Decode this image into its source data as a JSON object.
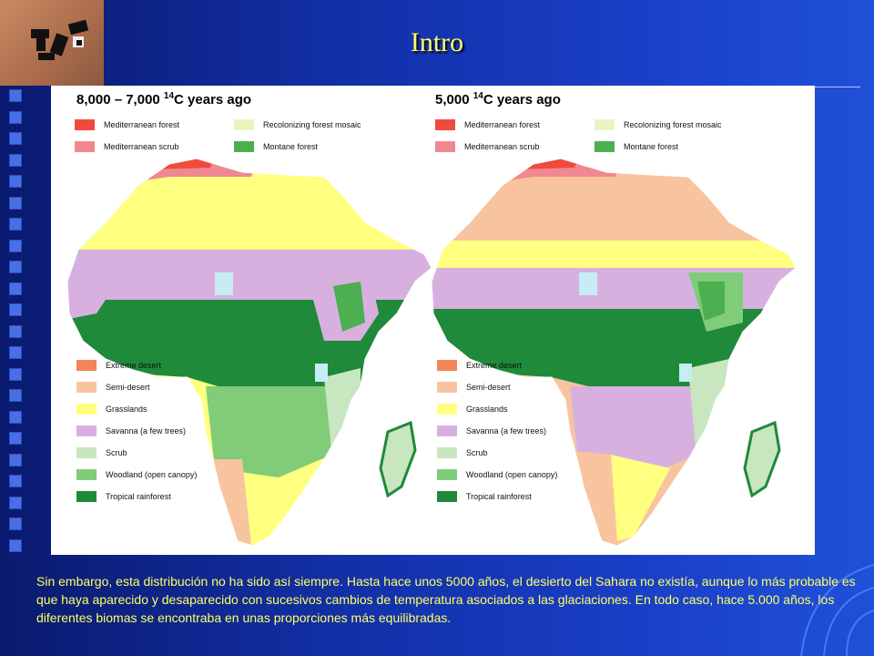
{
  "slide": {
    "title": "Intro",
    "caption": "Sin embargo, esta distribución no ha sido así siempre. Hasta hace unos 5000 años, el desierto del Sahara no existía, aunque lo más probable es que haya aparecido y desaparecido con sucesivos cambios de temperatura asociados a las glaciaciones. En todo caso, hace 5.000 años, los diferentes biomas se encontraba en unas proporciones más equilibradas."
  },
  "colors": {
    "mediterranean_forest": "#f04a3c",
    "mediterranean_scrub": "#f08890",
    "recolonizing_forest": "#e8f5c0",
    "montane_forest": "#4caf50",
    "extreme_desert": "#f4845a",
    "semi_desert": "#f8c4a0",
    "grasslands": "#ffff80",
    "savanna": "#d8b0e0",
    "scrub": "#c8e6c0",
    "woodland": "#80cc78",
    "tropical_rainforest": "#1e8a3a",
    "lake": "#c8ecf4",
    "title_text": "#ffff66"
  },
  "maps": [
    {
      "title_prefix": "8,000 – 7,000 ",
      "title_sup": "14",
      "title_suffix": "C years ago",
      "top_legend": [
        {
          "label": "Mediterranean forest",
          "key": "mediterranean_forest"
        },
        {
          "label": "Recolonizing forest mosaic",
          "key": "recolonizing_forest"
        },
        {
          "label": "Mediterranean scrub",
          "key": "mediterranean_scrub"
        },
        {
          "label": "Montane forest",
          "key": "montane_forest"
        }
      ],
      "legend": [
        {
          "label": "Extreme desert",
          "key": "extreme_desert"
        },
        {
          "label": "Semi-desert",
          "key": "semi_desert"
        },
        {
          "label": "Grasslands",
          "key": "grasslands"
        },
        {
          "label": "Savanna (a few trees)",
          "key": "savanna"
        },
        {
          "label": "Scrub",
          "key": "scrub"
        },
        {
          "label": "Woodland (open canopy)",
          "key": "woodland"
        },
        {
          "label": "Tropical rainforest",
          "key": "tropical_rainforest"
        }
      ]
    },
    {
      "title_prefix": "5,000 ",
      "title_sup": "14",
      "title_suffix": "C years ago",
      "top_legend": [
        {
          "label": "Mediterranean forest",
          "key": "mediterranean_forest"
        },
        {
          "label": "Recolonizing forest mosaic",
          "key": "recolonizing_forest"
        },
        {
          "label": "Mediterranean scrub",
          "key": "mediterranean_scrub"
        },
        {
          "label": "Montane forest",
          "key": "montane_forest"
        }
      ],
      "legend": [
        {
          "label": "Extreme desert",
          "key": "extreme_desert"
        },
        {
          "label": "Semi-desert",
          "key": "semi_desert"
        },
        {
          "label": "Grasslands",
          "key": "grasslands"
        },
        {
          "label": "Savanna (a few trees)",
          "key": "savanna"
        },
        {
          "label": "Scrub",
          "key": "scrub"
        },
        {
          "label": "Woodland (open canopy)",
          "key": "woodland"
        },
        {
          "label": "Tropical rainforest",
          "key": "tropical_rainforest"
        }
      ]
    }
  ]
}
